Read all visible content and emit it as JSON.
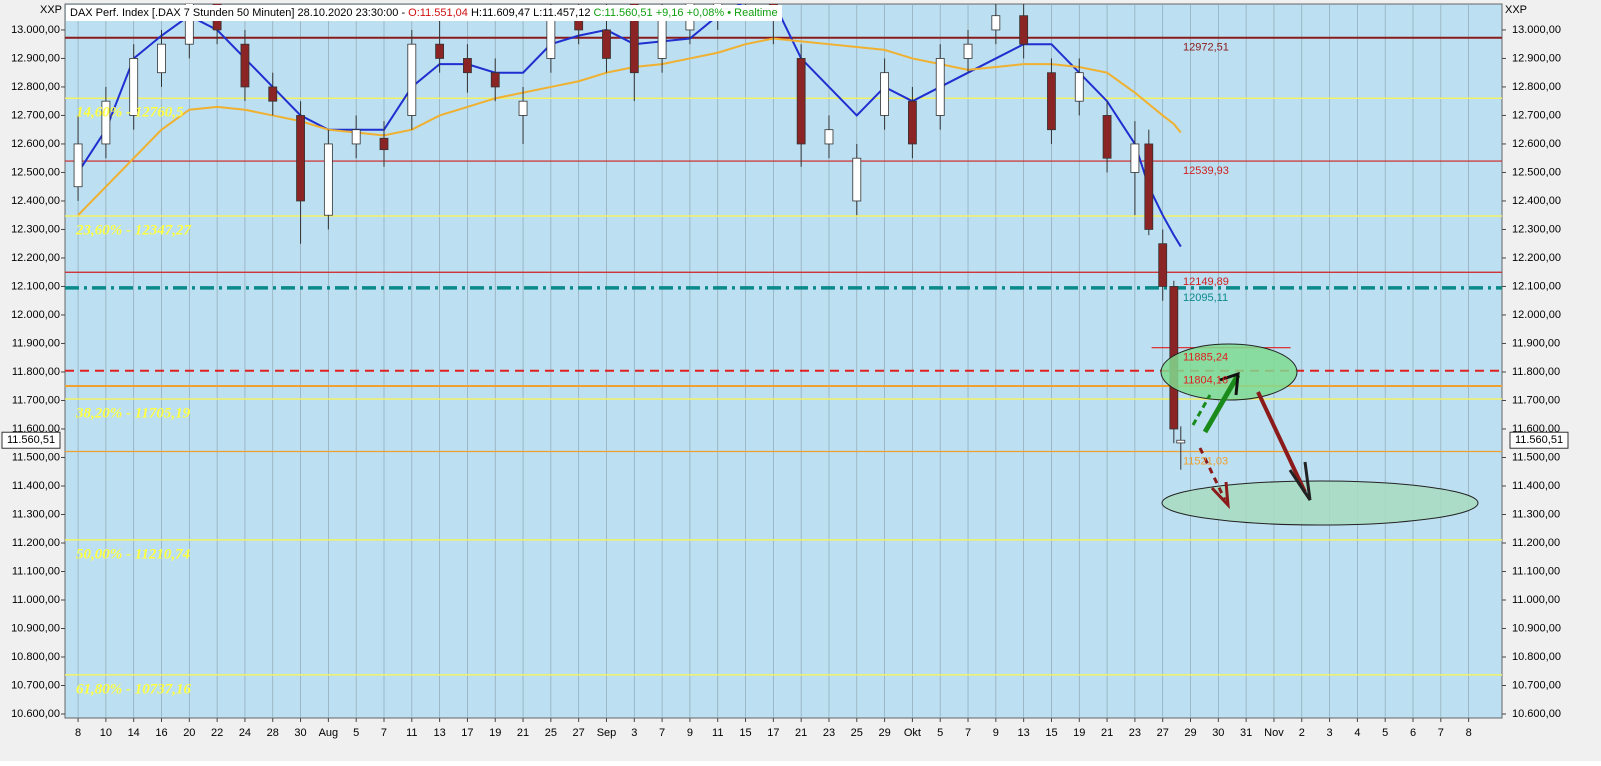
{
  "chart_data": {
    "type": "candlestick",
    "title": "DAX Perf. Index [.DAX 7 Stunden 50 Minuten] 28.10.2020 23:30:00 -",
    "subtitle_open": "O:11.551,04",
    "subtitle_high_low": "H:11.609,47 L:11.457,12",
    "subtitle_close": "C:11.560,51 +9,16 +0,08% • Realtime",
    "axis_label_left": "XXP",
    "axis_label_right": "XXP",
    "categories": [
      "8",
      "10",
      "14",
      "16",
      "20",
      "22",
      "24",
      "28",
      "30",
      "Aug",
      "5",
      "7",
      "11",
      "13",
      "17",
      "19",
      "21",
      "25",
      "27",
      "Sep",
      "3",
      "7",
      "9",
      "11",
      "15",
      "17",
      "21",
      "23",
      "25",
      "29",
      "Okt",
      "5",
      "7",
      "9",
      "13",
      "15",
      "19",
      "21",
      "23",
      "27",
      "29",
      "30",
      "31",
      "Nov",
      "2",
      "3",
      "4",
      "5",
      "6",
      "7",
      "8"
    ],
    "xlim": [
      -0.47,
      51.2
    ],
    "ylim": [
      10586,
      13091
    ],
    "yticks": [
      {
        "value": 10600,
        "label": "10.600,00"
      },
      {
        "value": 10700,
        "label": "10.700,00"
      },
      {
        "value": 10800,
        "label": "10.800,00"
      },
      {
        "value": 10900,
        "label": "10.900,00"
      },
      {
        "value": 11000,
        "label": "11.000,00"
      },
      {
        "value": 11100,
        "label": "11.100,00"
      },
      {
        "value": 11200,
        "label": "11.200,00"
      },
      {
        "value": 11300,
        "label": "11.300,00"
      },
      {
        "value": 11400,
        "label": "11.400,00"
      },
      {
        "value": 11500,
        "label": "11.500,00"
      },
      {
        "value": 11600,
        "label": "11.600,00"
      },
      {
        "value": 11700,
        "label": "11.700,00"
      },
      {
        "value": 11800,
        "label": "11.800,00"
      },
      {
        "value": 11900,
        "label": "11.900,00"
      },
      {
        "value": 12000,
        "label": "12.000,00"
      },
      {
        "value": 12100,
        "label": "12.100,00"
      },
      {
        "value": 12200,
        "label": "12.200,00"
      },
      {
        "value": 12300,
        "label": "12.300,00"
      },
      {
        "value": 12400,
        "label": "12.400,00"
      },
      {
        "value": 12500,
        "label": "12.500,00"
      },
      {
        "value": 12600,
        "label": "12.600,00"
      },
      {
        "value": 12700,
        "label": "12.700,00"
      },
      {
        "value": 12800,
        "label": "12.800,00"
      },
      {
        "value": 12900,
        "label": "12.900,00"
      },
      {
        "value": 13000,
        "label": "13.000,00"
      }
    ],
    "x": [
      0,
      1,
      2,
      3,
      4,
      5,
      6,
      7,
      8,
      9,
      10,
      11,
      12,
      13,
      14,
      15,
      16,
      17,
      18,
      19,
      20,
      21,
      22,
      23,
      24,
      25,
      26,
      27,
      28,
      29,
      30,
      31,
      32,
      33,
      34,
      35,
      36,
      37,
      38,
      38.5,
      39,
      39.4,
      39.65
    ],
    "open": [
      12450,
      12600,
      12700,
      12850,
      12950,
      13100,
      12950,
      12800,
      12700,
      12350,
      12600,
      12620,
      12700,
      12950,
      12900,
      12850,
      12700,
      12900,
      13050,
      13000,
      13100,
      12900,
      13000,
      13050,
      13100,
      13150,
      12900,
      12600,
      12400,
      12700,
      12750,
      12700,
      12900,
      13000,
      13050,
      12850,
      12750,
      12700,
      12500,
      12600,
      12250,
      12100,
      11551.04
    ],
    "high": [
      12700,
      12800,
      12950,
      13000,
      13150,
      13150,
      13000,
      12850,
      12750,
      12650,
      12700,
      12680,
      13000,
      13050,
      12950,
      12900,
      12800,
      13100,
      13150,
      13100,
      13150,
      13100,
      13150,
      13150,
      13200,
      13200,
      12950,
      12700,
      12600,
      12900,
      12800,
      12950,
      13000,
      13100,
      13100,
      12900,
      12900,
      12750,
      12680,
      12650,
      12300,
      12120,
      11609.47
    ],
    "low": [
      12400,
      12550,
      12650,
      12800,
      12900,
      12950,
      12750,
      12700,
      12250,
      12300,
      12550,
      12520,
      12650,
      12850,
      12780,
      12750,
      12600,
      12850,
      12950,
      12850,
      12750,
      12850,
      12950,
      13000,
      13050,
      12950,
      12520,
      12550,
      12350,
      12650,
      12550,
      12650,
      12850,
      12950,
      12900,
      12600,
      12700,
      12500,
      12350,
      12280,
      12050,
      11550,
      11457.12
    ],
    "close": [
      12600,
      12750,
      12900,
      12950,
      13100,
      13000,
      12800,
      12750,
      12400,
      12600,
      12650,
      12580,
      12950,
      12900,
      12850,
      12800,
      12750,
      13050,
      13000,
      12900,
      12850,
      13050,
      13100,
      13100,
      13150,
      13050,
      12600,
      12650,
      12550,
      12850,
      12600,
      12900,
      12950,
      13050,
      12950,
      12650,
      12850,
      12550,
      12600,
      12300,
      12100,
      11600,
      11560.51
    ],
    "up_color": "#ffffff",
    "down_color": "#8b2525",
    "lines": [
      {
        "color": "#1f2fd0",
        "values": [
          12500,
          12650,
          12900,
          12980,
          13050,
          13000,
          12900,
          12800,
          12700,
          12650,
          12650,
          12650,
          12800,
          12880,
          12880,
          12850,
          12850,
          12950,
          12980,
          13000,
          12950,
          12960,
          12970,
          13050,
          13100,
          13100,
          12900,
          12800,
          12700,
          12800,
          12750,
          12800,
          12850,
          12900,
          12950,
          12950,
          12850,
          12750,
          12600,
          12450,
          12350,
          12280,
          12240
        ]
      },
      {
        "color": "#f0b030",
        "values": [
          12350,
          12450,
          12550,
          12650,
          12720,
          12730,
          12720,
          12700,
          12680,
          12650,
          12640,
          12630,
          12650,
          12700,
          12730,
          12760,
          12780,
          12800,
          12820,
          12850,
          12870,
          12880,
          12900,
          12920,
          12950,
          12970,
          12960,
          12950,
          12940,
          12930,
          12900,
          12880,
          12860,
          12870,
          12880,
          12880,
          12870,
          12850,
          12780,
          12740,
          12700,
          12670,
          12640
        ]
      }
    ],
    "levels": [
      {
        "value": 12972.51,
        "label": "12972,51",
        "color": "#8b1a1a",
        "style": "solid"
      },
      {
        "value": 12539.93,
        "label": "12539,93",
        "color": "#d02020",
        "style": "solid"
      },
      {
        "value": 12149.89,
        "label": "12149,89",
        "color": "#d02020",
        "style": "solid"
      },
      {
        "value": 12095.11,
        "label": "12095,11",
        "color": "#0a8a8a",
        "style": "dashdot"
      },
      {
        "value": 11885.24,
        "label": "11885,24",
        "color": "#e02020",
        "style": "short"
      },
      {
        "value": 11804.16,
        "label": "11804,16",
        "color": "#e02020",
        "style": "dashed"
      },
      {
        "value": 11521.03,
        "label": "11521,03",
        "color": "#f0a030",
        "style": "solid"
      }
    ],
    "fib_levels": [
      {
        "value": 12760.5,
        "label": "14,60% - 12760,5"
      },
      {
        "value": 12347.27,
        "label": "23,60% - 12347,27"
      },
      {
        "value": 11705.19,
        "label": "38,20% - 11705,19"
      },
      {
        "value": 11210.74,
        "label": "50,00% - 11210,74"
      },
      {
        "value": 10737.16,
        "label": "61,80% - 10737,16"
      }
    ],
    "fib_color": "#f2f266",
    "extra_lines": [
      {
        "value": 11751,
        "color": "#f0a030"
      }
    ],
    "current": {
      "value": 11560.51,
      "label": "11.560,51"
    }
  }
}
